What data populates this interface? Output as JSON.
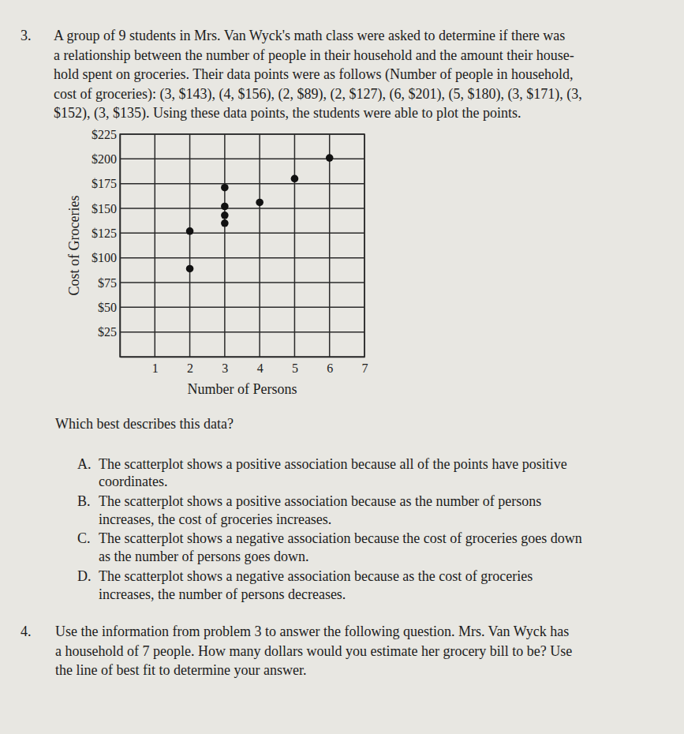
{
  "document": {
    "problem3": {
      "number": "3.",
      "lines": [
        "A group of 9 students in Mrs. Van Wyck's math class were asked to determine if there was",
        "a relationship between the number of people in their household and the amount their house-",
        "hold spent on groceries. Their data points were as follows (Number of people in household,",
        "cost of groceries): (3, $143), (4, $156), (2, $89), (2, $127), (6, $201), (5, $180), (3, $171), (3,",
        "$152), (3, $135). Using these data points, the students were able to plot the points."
      ],
      "question": "Which best describes this data?",
      "options": [
        {
          "letter": "A.",
          "lines": [
            "The scatterplot shows a positive association because all of the points have positive",
            "coordinates."
          ]
        },
        {
          "letter": "B.",
          "lines": [
            "The scatterplot shows a positive association because as the number of persons",
            "increases, the cost of groceries increases."
          ]
        },
        {
          "letter": "C.",
          "lines": [
            "The scatterplot shows a negative association because the cost of groceries goes down",
            "as the number of persons goes down."
          ]
        },
        {
          "letter": "D.",
          "lines": [
            "The scatterplot shows a negative association because as the cost of groceries",
            "increases, the number of persons decreases."
          ]
        }
      ]
    },
    "problem4": {
      "number": "4.",
      "lines": [
        "Use the information from problem 3 to answer the following question. Mrs. Van Wyck has",
        "a household of 7 people. How many dollars would you estimate her grocery bill to be? Use",
        "the line of best fit to determine your answer."
      ]
    }
  },
  "chart_data": {
    "type": "scatter",
    "x_label": "Number of Persons",
    "y_label": "Cost of Groceries",
    "x": [
      3,
      4,
      2,
      2,
      6,
      5,
      3,
      3,
      3
    ],
    "values": [
      143,
      156,
      89,
      127,
      201,
      180,
      171,
      152,
      135
    ],
    "color": "#111111",
    "marker": "circle",
    "xlim": [
      0,
      7
    ],
    "ylim": [
      0,
      225
    ],
    "xticks": [
      1,
      2,
      3,
      4,
      5,
      6,
      7
    ],
    "yticks": [
      {
        "value": 25,
        "label": "$25"
      },
      {
        "value": 50,
        "label": "$50"
      },
      {
        "value": 75,
        "label": "$75"
      },
      {
        "value": 100,
        "label": "$100"
      },
      {
        "value": 125,
        "label": "$125"
      },
      {
        "value": 150,
        "label": "$150"
      },
      {
        "value": 175,
        "label": "$175"
      },
      {
        "value": 200,
        "label": "$200"
      },
      {
        "value": 225,
        "label": "$225"
      }
    ],
    "grid": true
  }
}
